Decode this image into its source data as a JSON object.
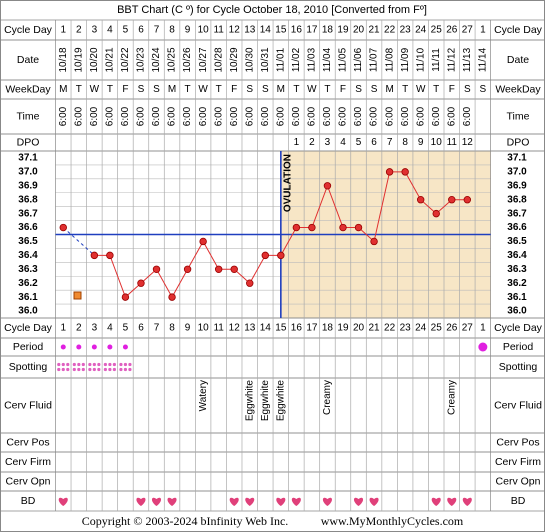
{
  "title": "BBT Chart (C º) for Cycle October 18, 2010  [Converted from Fº]",
  "footer": {
    "copyright": "Copyright © 2003-2024 bInfinity Web Inc.",
    "site": "www.MyMonthlyCycles.com"
  },
  "row_labels": {
    "cycle_day": "Cycle Day",
    "date": "Date",
    "weekday": "WeekDay",
    "time": "Time",
    "dpo": "DPO",
    "period": "Period",
    "spotting": "Spotting",
    "cerv_fluid": "Cerv Fluid",
    "cerv_pos": "Cerv Pos",
    "cerv_firm": "Cerv Firm",
    "cerv_opn": "Cerv Opn",
    "bd": "BD"
  },
  "columns": {
    "date": [
      "10/18",
      "10/19",
      "10/20",
      "10/21",
      "10/22",
      "10/23",
      "10/24",
      "10/25",
      "10/26",
      "10/27",
      "10/28",
      "10/29",
      "10/30",
      "10/31",
      "11/01",
      "11/02",
      "11/03",
      "11/04",
      "11/05",
      "11/06",
      "11/07",
      "11/08",
      "11/09",
      "11/10",
      "11/11",
      "11/12",
      "11/13",
      "11/14"
    ],
    "weekday": [
      "M",
      "T",
      "W",
      "T",
      "F",
      "S",
      "S",
      "M",
      "T",
      "W",
      "T",
      "F",
      "S",
      "S",
      "M",
      "T",
      "W",
      "T",
      "F",
      "S",
      "S",
      "M",
      "T",
      "W",
      "T",
      "F",
      "S",
      "S"
    ],
    "time": [
      "6:00",
      "6:00",
      "6:00",
      "6:00",
      "6:00",
      "6:00",
      "6:00",
      "6:00",
      "6:00",
      "6:00",
      "6:00",
      "6:00",
      "6:00",
      "6:00",
      "6:00",
      "6:00",
      "6:00",
      "6:00",
      "6:00",
      "6:00",
      "6:00",
      "6:00",
      "6:00",
      "6:00",
      "6:00",
      "6:00",
      "6:00",
      null
    ],
    "dpo": [
      null,
      null,
      null,
      null,
      null,
      null,
      null,
      null,
      null,
      null,
      null,
      null,
      null,
      null,
      null,
      1,
      2,
      3,
      4,
      5,
      6,
      7,
      8,
      9,
      10,
      11,
      12,
      null
    ],
    "period": [
      true,
      true,
      true,
      true,
      true,
      false,
      false,
      false,
      false,
      false,
      false,
      false,
      false,
      false,
      false,
      false,
      false,
      false,
      false,
      false,
      false,
      false,
      false,
      false,
      false,
      false,
      false,
      true
    ],
    "spotting": [
      true,
      true,
      true,
      true,
      true,
      false,
      false,
      false,
      false,
      false,
      false,
      false,
      false,
      false,
      false,
      false,
      false,
      false,
      false,
      false,
      false,
      false,
      false,
      false,
      false,
      false,
      false,
      false
    ],
    "cerv_fluid": [
      null,
      null,
      null,
      null,
      null,
      null,
      null,
      null,
      null,
      "Watery",
      null,
      null,
      "Eggwhite",
      "Eggwhite",
      "Eggwhite",
      null,
      null,
      "Creamy",
      null,
      null,
      null,
      null,
      null,
      null,
      null,
      "Creamy",
      null,
      null
    ],
    "bd": [
      true,
      false,
      false,
      false,
      false,
      true,
      true,
      true,
      false,
      false,
      false,
      true,
      true,
      false,
      true,
      true,
      false,
      true,
      false,
      true,
      true,
      false,
      false,
      false,
      true,
      true,
      true,
      false
    ]
  },
  "chart_data": {
    "type": "line",
    "categories": [
      1,
      2,
      3,
      4,
      5,
      6,
      7,
      8,
      9,
      10,
      11,
      12,
      13,
      14,
      15,
      16,
      17,
      18,
      19,
      20,
      21,
      22,
      23,
      24,
      25,
      26,
      27,
      1
    ],
    "values": [
      36.6,
      null,
      36.4,
      36.4,
      36.1,
      36.2,
      36.3,
      36.1,
      36.3,
      36.5,
      36.3,
      36.3,
      36.2,
      36.4,
      36.4,
      36.6,
      36.6,
      36.9,
      36.6,
      36.6,
      36.5,
      37.0,
      37.0,
      36.8,
      36.7,
      36.8,
      36.8,
      null
    ],
    "color": "#e03030",
    "ylim": [
      35.95,
      37.15
    ],
    "yticks": [
      37.1,
      {
        "value": 37.0,
        "label": "37.0"
      },
      36.9,
      36.8,
      36.7,
      36.6,
      36.5,
      36.4,
      36.3,
      36.2,
      36.1,
      {
        "value": 36.0,
        "label": "36.0"
      }
    ],
    "coverline": 36.55,
    "coverline_color": "#1f3fbf",
    "ovulation_day": 15,
    "ovulation_label": "OVULATION",
    "luteal_color": "#f7e6c6",
    "grid": true
  }
}
